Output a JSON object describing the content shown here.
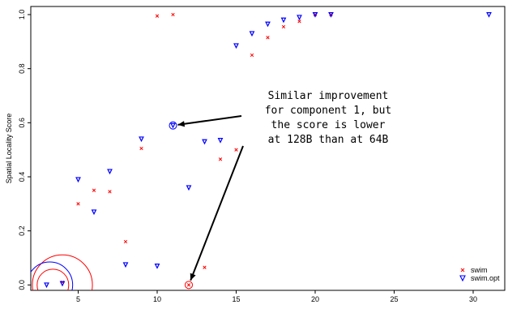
{
  "chart_data": {
    "type": "scatter",
    "title": "",
    "xlabel": "",
    "ylabel": "Spatial Locality Score",
    "xlim": [
      2,
      32
    ],
    "ylim": [
      -0.02,
      1.03
    ],
    "xticks": [
      5,
      10,
      15,
      20,
      25,
      30
    ],
    "yticks": [
      0.0,
      0.2,
      0.4,
      0.6,
      0.8,
      1.0
    ],
    "xtick_labels": [
      "5",
      "10",
      "15",
      "20",
      "25",
      "30"
    ],
    "ytick_labels": [
      "0.0",
      "0.2",
      "0.4",
      "0.6",
      "0.8",
      "1.0"
    ],
    "grid": false,
    "legend_position": "bottom-right",
    "series": [
      {
        "name": "swim",
        "marker": "x",
        "color": "#ff0000",
        "points": [
          [
            4,
            0.01
          ],
          [
            5,
            0.3
          ],
          [
            6,
            0.35
          ],
          [
            7,
            0.345
          ],
          [
            8,
            0.16
          ],
          [
            9,
            0.505
          ],
          [
            10,
            0.995
          ],
          [
            11,
            1.0
          ],
          [
            12,
            0.0
          ],
          [
            13,
            0.065
          ],
          [
            14,
            0.465
          ],
          [
            15,
            0.5
          ],
          [
            16,
            0.85
          ],
          [
            17,
            0.915
          ],
          [
            18,
            0.955
          ],
          [
            19,
            0.975
          ],
          [
            20,
            1.0
          ],
          [
            21,
            1.0
          ]
        ]
      },
      {
        "name": "swim.opt",
        "marker": "triangle-down",
        "color": "#0000ff",
        "points": [
          [
            3,
            0.0
          ],
          [
            4,
            0.005
          ],
          [
            5,
            0.39
          ],
          [
            6,
            0.27
          ],
          [
            7,
            0.42
          ],
          [
            8,
            0.075
          ],
          [
            9,
            0.54
          ],
          [
            10,
            0.07
          ],
          [
            11,
            0.59
          ],
          [
            12,
            0.36
          ],
          [
            13,
            0.53
          ],
          [
            14,
            0.535
          ],
          [
            15,
            0.885
          ],
          [
            16,
            0.93
          ],
          [
            17,
            0.965
          ],
          [
            18,
            0.98
          ],
          [
            19,
            0.99
          ],
          [
            20,
            1.0
          ],
          [
            21,
            1.0
          ],
          [
            31,
            1.0
          ]
        ]
      }
    ],
    "highlighted_points": [
      {
        "series": "swim.opt",
        "x": 11,
        "y": 0.59
      },
      {
        "series": "swim",
        "x": 12,
        "y": 0.0
      }
    ],
    "annotation": {
      "lines": [
        "Similar improvement",
        "for component 1, but",
        "the score is lower",
        "at 128B than at 64B"
      ]
    },
    "circles": [
      {
        "color": "#ff0000",
        "cx": 4,
        "cy": 0.0,
        "r_x": 1.9
      },
      {
        "color": "#ff0000",
        "cx": 3.4,
        "cy": 0.0,
        "r_x": 1.0
      },
      {
        "color": "#0000ff",
        "cx": 3.2,
        "cy": 0.0,
        "r_x": 1.45
      }
    ]
  }
}
